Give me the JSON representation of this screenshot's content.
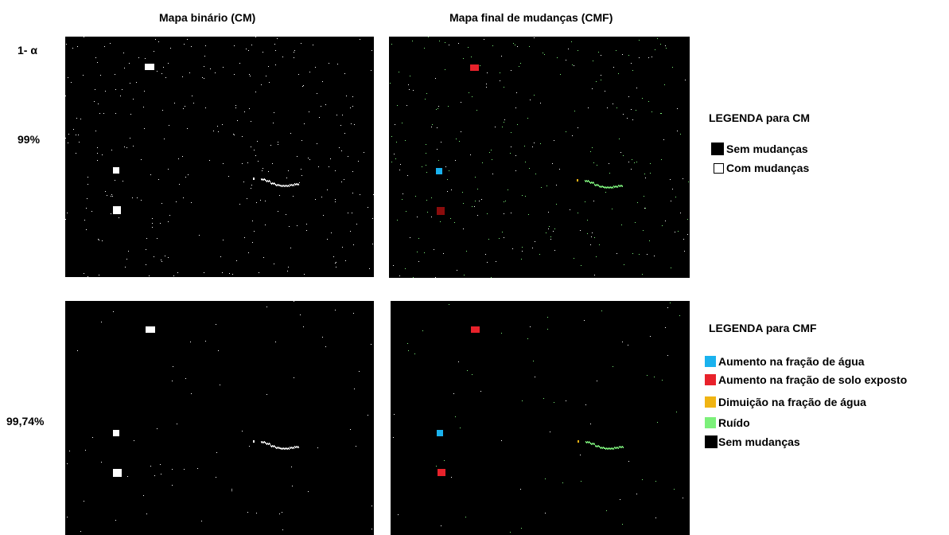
{
  "headers": {
    "col1": "Mapa binário (CM)",
    "col2": "Mapa final  de mudanças (CMF)"
  },
  "row_labels": {
    "alpha": "1- α",
    "row1": "99%",
    "row2": "99,74%"
  },
  "legend_cm": {
    "title": "LEGENDA para CM",
    "items": [
      {
        "label": "Sem mudanças",
        "color": "#000000"
      },
      {
        "label": "Com mudanças",
        "color": "#ffffff"
      }
    ]
  },
  "legend_cmf": {
    "title": "LEGENDA para CMF",
    "items": [
      {
        "label": "Aumento na fração de água",
        "color": "#1ab2ee"
      },
      {
        "label": "Aumento na fração de solo exposto",
        "color": "#e8222b"
      },
      {
        "label": "Dimuição na fração de água",
        "color": "#f0b413"
      },
      {
        "label": "Ruído",
        "color": "#7cf07a"
      },
      {
        "label": "Sem mudanças",
        "color": "#000000"
      }
    ]
  },
  "colors": {
    "change": "#ffffff",
    "water_increase": "#1ab2ee",
    "soil_increase": "#e8222b",
    "soil_increase_dark": "#8b0c0c",
    "water_decrease": "#f0b413",
    "noise": "#7cf07a",
    "background": "#000000"
  }
}
